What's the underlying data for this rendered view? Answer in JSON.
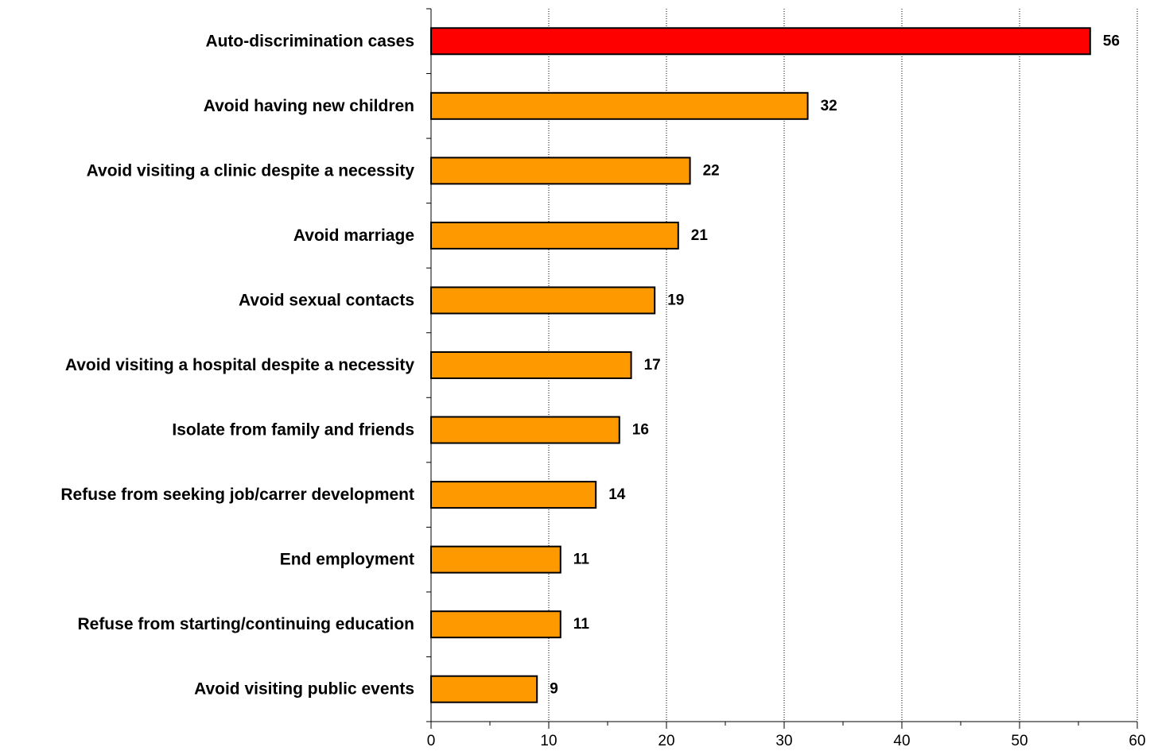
{
  "chart_data": {
    "type": "bar",
    "orientation": "horizontal",
    "title": "",
    "xlabel": "",
    "ylabel": "",
    "categories": [
      "Auto-discrimination cases",
      "Avoid having new children",
      "Avoid visiting a clinic despite a necessity",
      "Avoid marriage",
      "Avoid sexual contacts",
      "Avoid visiting a hospital despite a necessity",
      "Isolate from family and friends",
      "Refuse from seeking job/carrer development",
      "End employment",
      "Refuse from starting/continuing education",
      "Avoid visiting public events"
    ],
    "values": [
      56,
      32,
      22,
      21,
      19,
      17,
      16,
      14,
      11,
      11,
      9
    ],
    "data_labels": [
      "56",
      "32",
      "22",
      "21",
      "19",
      "17",
      "16",
      "14",
      "11",
      "11",
      "9"
    ],
    "bar_colors": [
      "#ff0000",
      "#ff9900",
      "#ff9900",
      "#ff9900",
      "#ff9900",
      "#ff9900",
      "#ff9900",
      "#ff9900",
      "#ff9900",
      "#ff9900",
      "#ff9900"
    ],
    "xlim": [
      0,
      60
    ],
    "major_ticks": [
      0,
      10,
      20,
      30,
      40,
      50,
      60
    ],
    "tick_labels": [
      "0",
      "10",
      "20",
      "30",
      "40",
      "50",
      "60"
    ],
    "minor_tick_step": 5,
    "grid": "vertical dotted",
    "legend": "none"
  }
}
